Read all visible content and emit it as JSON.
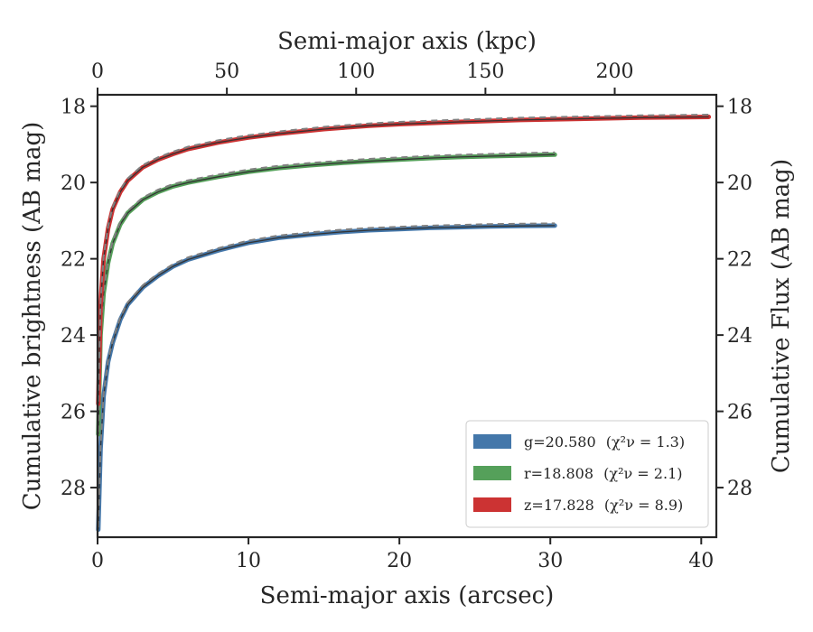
{
  "chart_data": {
    "type": "line",
    "xlabel": "Semi-major axis (arcsec)",
    "ylabel": "Cumulative brightness (AB mag)",
    "top_xlabel": "Semi-major axis (kpc)",
    "right_ylabel": "Cumulative Flux (AB mag)",
    "xlim": [
      0,
      41
    ],
    "ylim": [
      29.3,
      17.7
    ],
    "y_inverted": true,
    "top_xlim": [
      0,
      239.3
    ],
    "xticks": [
      "0",
      "10",
      "20",
      "30",
      "40"
    ],
    "yticks": [
      "18",
      "20",
      "22",
      "24",
      "26",
      "28"
    ],
    "top_xticks": [
      "0",
      "50",
      "100",
      "150",
      "200"
    ],
    "right_yticks": [
      "18",
      "20",
      "22",
      "24",
      "26",
      "28"
    ],
    "legend_position": "lower-right",
    "series": [
      {
        "name": "g=20.580",
        "chi_label": "(χ²ν = 1.3)",
        "color": "#4477aa",
        "x": [
          0.05,
          0.2,
          0.4,
          0.7,
          1.0,
          1.5,
          2.0,
          3.0,
          4.0,
          5.0,
          6.0,
          8.0,
          10.0,
          12.0,
          14.0,
          16.0,
          18.0,
          20.0,
          22.0,
          24.0,
          26.0,
          28.0,
          30.3
        ],
        "y": [
          29.1,
          27.0,
          25.6,
          24.7,
          24.2,
          23.6,
          23.2,
          22.75,
          22.45,
          22.2,
          22.02,
          21.78,
          21.58,
          21.45,
          21.37,
          21.3,
          21.25,
          21.22,
          21.19,
          21.17,
          21.15,
          21.14,
          21.13
        ]
      },
      {
        "name": "r=18.808",
        "chi_label": "(χ²ν = 2.1)",
        "color": "#55a05a",
        "x": [
          0.05,
          0.2,
          0.4,
          0.7,
          1.0,
          1.5,
          2.0,
          3.0,
          4.0,
          5.0,
          6.0,
          8.0,
          10.0,
          12.0,
          14.0,
          16.0,
          18.0,
          20.0,
          22.0,
          24.0,
          26.0,
          28.0,
          30.3
        ],
        "y": [
          26.6,
          24.0,
          22.9,
          22.1,
          21.6,
          21.1,
          20.8,
          20.45,
          20.25,
          20.1,
          20.0,
          19.85,
          19.72,
          19.62,
          19.55,
          19.49,
          19.44,
          19.4,
          19.36,
          19.33,
          19.31,
          19.29,
          19.27
        ]
      },
      {
        "name": "z=17.828",
        "chi_label": "(χ²ν = 8.9)",
        "color": "#cc3333",
        "x": [
          0.05,
          0.2,
          0.4,
          0.7,
          1.0,
          1.5,
          2.0,
          3.0,
          4.0,
          5.0,
          6.0,
          8.0,
          10.0,
          12.0,
          15.0,
          18.0,
          20.0,
          24.0,
          28.0,
          32.0,
          36.0,
          40.5
        ],
        "y": [
          25.8,
          23.2,
          22.0,
          21.2,
          20.7,
          20.25,
          19.95,
          19.6,
          19.4,
          19.25,
          19.12,
          18.95,
          18.82,
          18.72,
          18.6,
          18.51,
          18.47,
          18.41,
          18.36,
          18.33,
          18.3,
          18.28
        ]
      }
    ]
  }
}
